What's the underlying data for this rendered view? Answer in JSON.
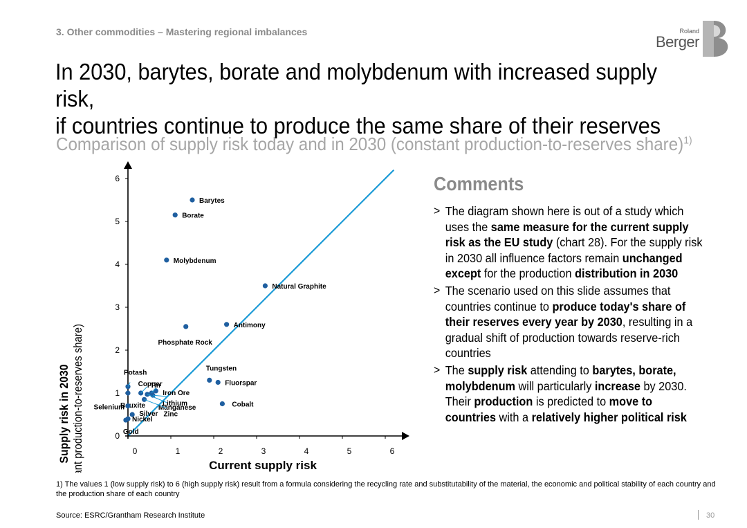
{
  "header": {
    "section": "3. Other commodities – Mastering regional imbalances",
    "logo_small": "Roland",
    "logo_big": "Berger",
    "title_line1": "In 2030, barytes, borate and molybdenum with increased supply risk,",
    "title_line2": "if countries continue to produce the same share of their reserves",
    "subtitle": "Comparison of supply risk today and in 2030 (constant production-to-reserves share)",
    "subtitle_sup": "1)"
  },
  "colors": {
    "accent_line": "#1a9ad6",
    "point": "#1f5fa0",
    "muted": "#8a8a8a"
  },
  "chart_data": {
    "type": "scatter",
    "xlabel": "Current supply risk",
    "ylabel": "Supply risk in 2030",
    "ylabel2": "(constant production-to-reserves share)",
    "xlim": [
      0,
      6
    ],
    "ylim": [
      0,
      6
    ],
    "xticks": [
      "0",
      "1",
      "2",
      "3",
      "4",
      "5",
      "6"
    ],
    "yticks": [
      "0",
      "1",
      "2",
      "3",
      "4",
      "5",
      "6"
    ],
    "reference_line": "y = x",
    "points": [
      {
        "name": "Barytes",
        "x": 1.5,
        "y": 5.5
      },
      {
        "name": "Borate",
        "x": 1.1,
        "y": 5.15
      },
      {
        "name": "Molybdenum",
        "x": 0.9,
        "y": 4.1
      },
      {
        "name": "Natural Graphite",
        "x": 3.2,
        "y": 3.5
      },
      {
        "name": "Antimony",
        "x": 2.3,
        "y": 2.6
      },
      {
        "name": "Phosphate Rock",
        "x": 1.35,
        "y": 2.55
      },
      {
        "name": "Tungsten",
        "x": 1.9,
        "y": 1.3
      },
      {
        "name": "Fluorspar",
        "x": 2.1,
        "y": 1.25
      },
      {
        "name": "Cobalt",
        "x": 2.2,
        "y": 0.75
      },
      {
        "name": "Potash",
        "x": 0.0,
        "y": 1.15
      },
      {
        "name": "Copper",
        "x": 0.3,
        "y": 1.0
      },
      {
        "name": "Tin",
        "x": 0.55,
        "y": 1.0
      },
      {
        "name": "Iron Ore",
        "x": 0.65,
        "y": 1.05
      },
      {
        "name": "Lithium",
        "x": 0.58,
        "y": 0.95
      },
      {
        "name": "Manganese",
        "x": 0.45,
        "y": 0.97
      },
      {
        "name": "Zinc",
        "x": 0.38,
        "y": 0.85
      },
      {
        "name": "Bauxite",
        "x": 0.0,
        "y": 1.0
      },
      {
        "name": "Selenium",
        "x": 0.0,
        "y": 0.7
      },
      {
        "name": "Silver",
        "x": 0.1,
        "y": 0.5
      },
      {
        "name": "Nickel",
        "x": 0.0,
        "y": 0.4
      },
      {
        "name": "Gold",
        "x": -0.05,
        "y": 0.37
      }
    ]
  },
  "comments": {
    "heading": "Comments",
    "items": [
      [
        {
          "t": "The diagram shown here is out of a study which uses the ",
          "b": false
        },
        {
          "t": "same measure for the current supply risk as the EU study",
          "b": true
        },
        {
          "t": " (chart 28). For the supply risk in 2030 all influence factors remain ",
          "b": false
        },
        {
          "t": "unchanged except",
          "b": true
        },
        {
          "t": " for the production ",
          "b": false
        },
        {
          "t": "distribution in 2030",
          "b": true
        }
      ],
      [
        {
          "t": "The scenario used on this slide assumes that countries continue to ",
          "b": false
        },
        {
          "t": "produce today's share of their reserves every year by 2030",
          "b": true
        },
        {
          "t": ", resulting in a gradual shift of production towards reserve-rich countries",
          "b": false
        }
      ],
      [
        {
          "t": "The ",
          "b": false
        },
        {
          "t": "supply risk",
          "b": true
        },
        {
          "t": " attending to ",
          "b": false
        },
        {
          "t": "barytes, borate, molybdenum",
          "b": true
        },
        {
          "t": " will particularly ",
          "b": false
        },
        {
          "t": "increase",
          "b": true
        },
        {
          "t": " by 2030. Their ",
          "b": false
        },
        {
          "t": "production",
          "b": true
        },
        {
          "t": " is predicted to ",
          "b": false
        },
        {
          "t": "move to countries",
          "b": true
        },
        {
          "t": " with a ",
          "b": false
        },
        {
          "t": "relatively higher political risk",
          "b": true
        }
      ]
    ]
  },
  "footer": {
    "footnote": "1) The values 1 (low supply risk) to 6 (high supply risk) result from a formula considering the recycling rate and substitutability of the material, the economic and political stability of each country and the production share of each country",
    "source": "Source: ESRC/Grantham Research Institute",
    "page": "30"
  }
}
